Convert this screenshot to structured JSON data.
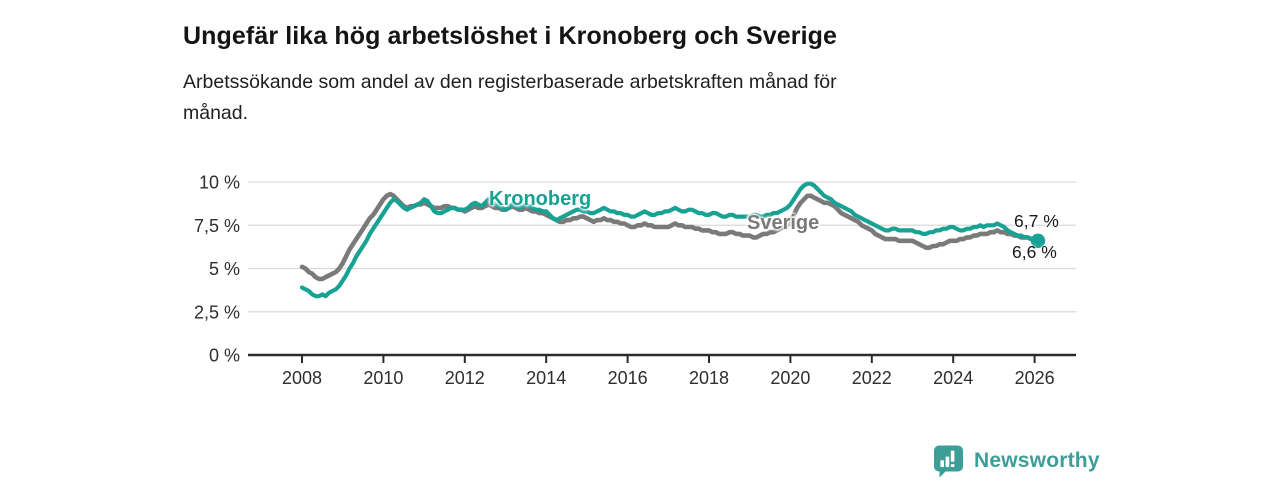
{
  "header": {
    "title": "Ungefär lika hög arbetslöshet i Kronoberg och Sverige",
    "subtitle_lines": [
      "Arbetssökande som andel av den registerbaserade arbetskraften månad för",
      "månad."
    ]
  },
  "footer": {
    "brand": "Newsworthy",
    "brand_color": "#3d9e98",
    "logo_icon": "speech-bubble-bar-chart-icon"
  },
  "colors": {
    "kronoberg_line": "#17a294",
    "sverige_line": "#7a7a7a",
    "gridline": "#d9d9d9",
    "axis_line": "#2b2b2b",
    "tick_text": "#2e2e2e",
    "end_label_text": "#1a1a1a",
    "title_text": "#141414"
  },
  "chart_data": {
    "type": "line",
    "title": "Ungefär lika hög arbetslöshet i Kronoberg och Sverige",
    "subtitle": "Arbetssökande som andel av den registerbaserade arbetskraften månad för månad.",
    "xlabel": "",
    "ylabel": "",
    "x_unit": "year-month",
    "x_start_year": 2008,
    "x_step_months": 1,
    "xlim": [
      2006.7,
      2027.0
    ],
    "ylim": [
      0,
      10.5
    ],
    "grid": "horizontal",
    "legend_position": "inline-line-labels",
    "x_ticks": [
      "2008",
      "2010",
      "2012",
      "2014",
      "2016",
      "2018",
      "2020",
      "2022",
      "2024",
      "2026"
    ],
    "y_ticks": [
      {
        "value": 0,
        "label": "0 %"
      },
      {
        "value": 2.5,
        "label": "2,5 %"
      },
      {
        "value": 5,
        "label": "5 %"
      },
      {
        "value": 7.5,
        "label": "7,5 %"
      },
      {
        "value": 10,
        "label": "10 %"
      }
    ],
    "series": [
      {
        "name": "Sverige",
        "color": "#7a7a7a",
        "final_value_label": "6,7 %",
        "values": [
          5.1,
          5.0,
          4.8,
          4.7,
          4.5,
          4.4,
          4.4,
          4.5,
          4.6,
          4.7,
          4.8,
          5.0,
          5.3,
          5.7,
          6.1,
          6.4,
          6.7,
          7.0,
          7.3,
          7.6,
          7.9,
          8.1,
          8.4,
          8.7,
          9.0,
          9.2,
          9.3,
          9.2,
          9.0,
          8.8,
          8.6,
          8.5,
          8.6,
          8.6,
          8.7,
          8.7,
          8.8,
          8.7,
          8.6,
          8.5,
          8.5,
          8.5,
          8.6,
          8.6,
          8.5,
          8.5,
          8.4,
          8.4,
          8.3,
          8.4,
          8.5,
          8.6,
          8.5,
          8.5,
          8.6,
          8.7,
          8.6,
          8.5,
          8.5,
          8.4,
          8.4,
          8.5,
          8.6,
          8.5,
          8.4,
          8.4,
          8.5,
          8.4,
          8.3,
          8.3,
          8.2,
          8.2,
          8.1,
          8.0,
          7.9,
          7.8,
          7.7,
          7.7,
          7.8,
          7.8,
          7.9,
          7.9,
          8.0,
          8.0,
          7.9,
          7.8,
          7.7,
          7.8,
          7.8,
          7.9,
          7.8,
          7.8,
          7.7,
          7.7,
          7.6,
          7.6,
          7.5,
          7.4,
          7.4,
          7.5,
          7.5,
          7.6,
          7.5,
          7.5,
          7.4,
          7.4,
          7.4,
          7.4,
          7.4,
          7.5,
          7.6,
          7.5,
          7.5,
          7.4,
          7.4,
          7.4,
          7.3,
          7.3,
          7.2,
          7.2,
          7.2,
          7.1,
          7.1,
          7.0,
          7.0,
          7.0,
          7.1,
          7.1,
          7.0,
          7.0,
          6.9,
          6.9,
          6.9,
          6.8,
          6.8,
          6.9,
          7.0,
          7.0,
          7.1,
          7.1,
          7.2,
          7.3,
          7.4,
          7.5,
          7.7,
          8.1,
          8.5,
          8.8,
          9.0,
          9.2,
          9.2,
          9.1,
          9.0,
          8.9,
          8.8,
          8.8,
          8.7,
          8.6,
          8.4,
          8.2,
          8.1,
          8.0,
          7.9,
          7.8,
          7.7,
          7.5,
          7.4,
          7.3,
          7.2,
          7.0,
          6.9,
          6.8,
          6.7,
          6.7,
          6.7,
          6.7,
          6.6,
          6.6,
          6.6,
          6.6,
          6.6,
          6.5,
          6.4,
          6.3,
          6.2,
          6.2,
          6.3,
          6.3,
          6.4,
          6.4,
          6.5,
          6.6,
          6.6,
          6.6,
          6.7,
          6.7,
          6.8,
          6.8,
          6.9,
          6.9,
          7.0,
          7.0,
          7.0,
          7.1,
          7.1,
          7.2,
          7.1,
          7.1,
          7.0,
          7.0,
          6.9,
          6.9,
          6.8,
          6.8,
          6.8,
          6.7,
          6.7,
          6.7
        ]
      },
      {
        "name": "Kronoberg",
        "color": "#17a294",
        "final_value_label": "6,6 %",
        "end_dot": true,
        "values": [
          3.9,
          3.8,
          3.7,
          3.5,
          3.4,
          3.4,
          3.5,
          3.4,
          3.6,
          3.7,
          3.8,
          4.0,
          4.3,
          4.6,
          5.0,
          5.3,
          5.7,
          6.0,
          6.3,
          6.6,
          7.0,
          7.3,
          7.6,
          7.9,
          8.2,
          8.5,
          8.8,
          9.0,
          8.9,
          8.7,
          8.5,
          8.4,
          8.5,
          8.6,
          8.7,
          8.8,
          9.0,
          8.9,
          8.6,
          8.3,
          8.2,
          8.2,
          8.3,
          8.4,
          8.5,
          8.5,
          8.4,
          8.4,
          8.4,
          8.5,
          8.7,
          8.8,
          8.7,
          8.6,
          8.8,
          9.0,
          8.9,
          8.7,
          8.6,
          8.5,
          8.4,
          8.5,
          8.7,
          8.6,
          8.5,
          8.6,
          8.7,
          8.6,
          8.5,
          8.4,
          8.4,
          8.3,
          8.3,
          8.1,
          7.9,
          7.8,
          7.9,
          8.0,
          8.1,
          8.2,
          8.3,
          8.4,
          8.4,
          8.3,
          8.3,
          8.2,
          8.2,
          8.3,
          8.4,
          8.5,
          8.4,
          8.3,
          8.3,
          8.2,
          8.2,
          8.1,
          8.1,
          8.0,
          8.0,
          8.1,
          8.2,
          8.3,
          8.2,
          8.1,
          8.1,
          8.2,
          8.2,
          8.3,
          8.3,
          8.4,
          8.5,
          8.4,
          8.3,
          8.3,
          8.4,
          8.4,
          8.3,
          8.2,
          8.2,
          8.1,
          8.1,
          8.2,
          8.2,
          8.1,
          8.0,
          8.0,
          8.1,
          8.1,
          8.0,
          8.0,
          8.0,
          8.0,
          8.0,
          8.1,
          8.1,
          8.0,
          8.0,
          8.1,
          8.1,
          8.2,
          8.2,
          8.3,
          8.4,
          8.5,
          8.7,
          9.0,
          9.3,
          9.6,
          9.8,
          9.9,
          9.9,
          9.8,
          9.6,
          9.4,
          9.2,
          9.1,
          9.0,
          8.8,
          8.7,
          8.6,
          8.5,
          8.4,
          8.3,
          8.1,
          8.0,
          7.9,
          7.8,
          7.7,
          7.6,
          7.5,
          7.4,
          7.3,
          7.2,
          7.2,
          7.3,
          7.3,
          7.2,
          7.2,
          7.2,
          7.2,
          7.2,
          7.1,
          7.1,
          7.0,
          7.0,
          7.1,
          7.1,
          7.2,
          7.2,
          7.3,
          7.3,
          7.4,
          7.4,
          7.3,
          7.2,
          7.2,
          7.3,
          7.3,
          7.4,
          7.4,
          7.5,
          7.4,
          7.5,
          7.5,
          7.5,
          7.6,
          7.5,
          7.4,
          7.2,
          7.1,
          7.0,
          6.9,
          6.9,
          6.8,
          6.8,
          6.7,
          6.7,
          6.6
        ]
      }
    ],
    "end_labels": {
      "top": "6,7 %",
      "bottom": "6,6 %"
    }
  }
}
